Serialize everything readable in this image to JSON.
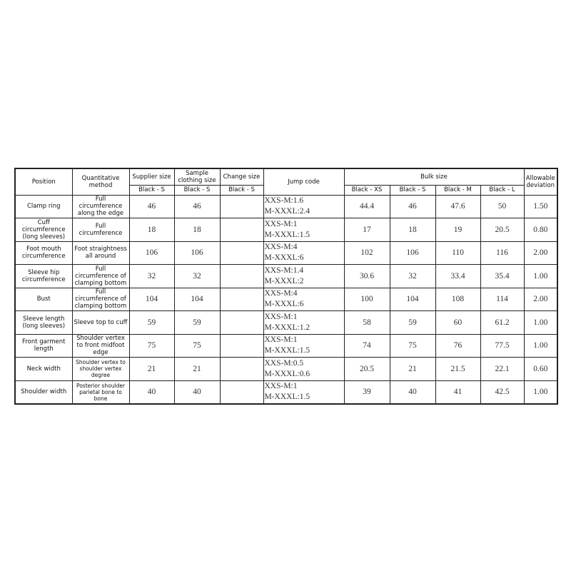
{
  "headers": {
    "position": "Position",
    "method": "Quantitative method",
    "supplier": "Supplier size",
    "sample": "Sample clothing size",
    "change": "Change size",
    "jump": "Jump code",
    "bulk": "Bulk size",
    "deviation": "Allowable deviation",
    "supplier_sub": "Black - S",
    "sample_sub": "Black - S",
    "change_sub": "Black - S",
    "bulk_sub": [
      "Black - XS",
      "Black - S",
      "Black - M",
      "Black - L"
    ]
  },
  "rows": [
    {
      "position": "Clamp ring",
      "method": "Full circumference along the edge",
      "supplier": "46",
      "sample": "46",
      "change": "",
      "jump1": "XXS-M:1.6",
      "jump2": "M-XXXL:2.4",
      "bulk": [
        "44.4",
        "46",
        "47.6",
        "50"
      ],
      "deviation": "1.50"
    },
    {
      "position": "Cuff circumference (long sleeves)",
      "method": "Full circumference",
      "supplier": "18",
      "sample": "18",
      "change": "",
      "jump1": "XXS-M:1",
      "jump2": "M-XXXL:1.5",
      "bulk": [
        "17",
        "18",
        "19",
        "20.5"
      ],
      "deviation": "0.80"
    },
    {
      "position": "Foot mouth circumference",
      "method": "Foot straightness all around",
      "supplier": "106",
      "sample": "106",
      "change": "",
      "jump1": "XXS-M:4",
      "jump2": "M-XXXL:6",
      "bulk": [
        "102",
        "106",
        "110",
        "116"
      ],
      "deviation": "2.00"
    },
    {
      "position": "Sleeve hip circumference",
      "method": "Full circumference of clamping bottom",
      "supplier": "32",
      "sample": "32",
      "change": "",
      "jump1": "XXS-M:1.4",
      "jump2": "M-XXXL:2",
      "bulk": [
        "30.6",
        "32",
        "33.4",
        "35.4"
      ],
      "deviation": "1.00"
    },
    {
      "position": "Bust",
      "method": "Full circumference of clamping bottom",
      "supplier": "104",
      "sample": "104",
      "change": "",
      "jump1": "XXS-M:4",
      "jump2": "M-XXXL:6",
      "bulk": [
        "100",
        "104",
        "108",
        "114"
      ],
      "deviation": "2.00"
    },
    {
      "position": "Sleeve length (long sleeves)",
      "method": "Sleeve top to cuff",
      "supplier": "59",
      "sample": "59",
      "change": "",
      "jump1": "XXS-M:1",
      "jump2": "M-XXXL:1.2",
      "bulk": [
        "58",
        "59",
        "60",
        "61.2"
      ],
      "deviation": "1.00"
    },
    {
      "position": "Front garment length",
      "method": "Shoulder vertex to front midfoot edge",
      "supplier": "75",
      "sample": "75",
      "change": "",
      "jump1": "XXS-M:1",
      "jump2": "M-XXXL:1.5",
      "bulk": [
        "74",
        "75",
        "76",
        "77.5"
      ],
      "deviation": "1.00"
    },
    {
      "position": "Neck width",
      "method": "Shoulder vertex to shoulder vertex degree",
      "method_small": true,
      "supplier": "21",
      "sample": "21",
      "change": "",
      "jump1": "XXS-M:0.5",
      "jump2": "M-XXXL:0.6",
      "bulk": [
        "20.5",
        "21",
        "21.5",
        "22.1"
      ],
      "deviation": "0.60"
    },
    {
      "position": "Shoulder width",
      "method": "Posterior shoulder parietal bone to bone",
      "method_small": true,
      "supplier": "40",
      "sample": "40",
      "change": "",
      "jump1": "XXS-M:1",
      "jump2": "M-XXXL:1.5",
      "bulk": [
        "39",
        "40",
        "41",
        "42.5"
      ],
      "deviation": "1.00"
    }
  ]
}
